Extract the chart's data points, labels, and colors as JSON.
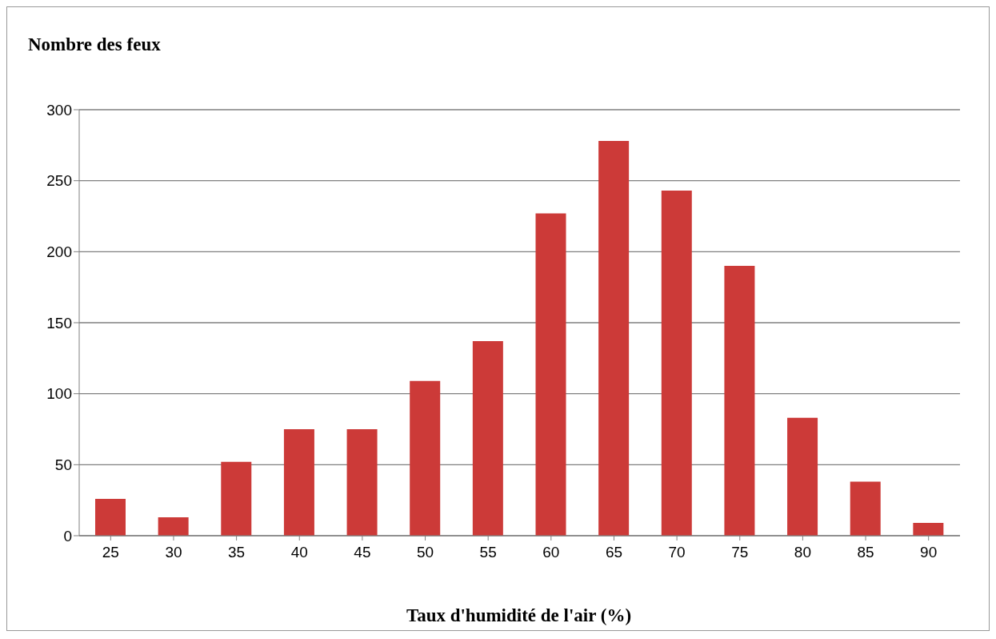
{
  "chart_data": {
    "type": "bar",
    "title": "Nombre des feux",
    "xlabel": "Taux d'humidité de l'air (%)",
    "categories": [
      "25",
      "30",
      "35",
      "40",
      "45",
      "50",
      "55",
      "60",
      "65",
      "70",
      "75",
      "80",
      "85",
      "90"
    ],
    "values": [
      26,
      13,
      52,
      75,
      75,
      109,
      137,
      227,
      278,
      243,
      190,
      83,
      38,
      9
    ],
    "color": "#cc3a38",
    "ylim": [
      0,
      300
    ],
    "yticks": [
      0,
      50,
      100,
      150,
      200,
      250,
      300
    ],
    "grid": "y"
  }
}
